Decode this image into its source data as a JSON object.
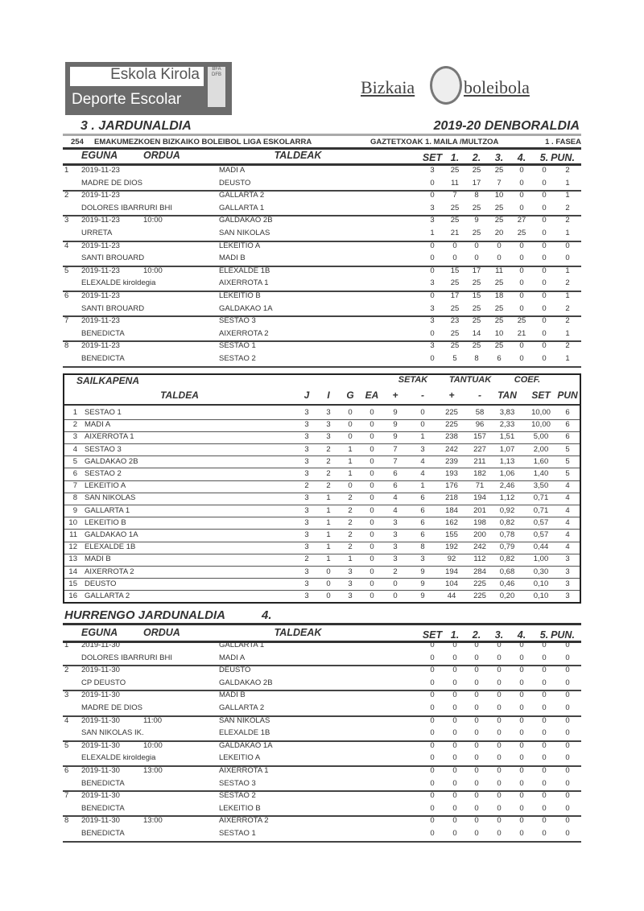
{
  "logos": {
    "left_line1": "Eskola Kirola",
    "left_line2": "Deporte Escolar",
    "left_badge": "BFA DFB",
    "right_left": "Bizkaia",
    "right_right": "boleibola"
  },
  "header": {
    "round_title": "3 . JARDUNALDIA",
    "season": "2019-20 DENBORALDIA",
    "competition_code": "254",
    "competition": "EMAKUMEZKOEN BIZKAIKO BOLEIBOL LIGA ESKOLARRA",
    "category": "GAZTETXOAK  1. MAILA /MULTZOA",
    "phase": "1  . FASEA"
  },
  "match_columns": {
    "date": "EGUNA",
    "time": "ORDUA",
    "teams": "TALDEAK",
    "set": "SET",
    "s1": "1.",
    "s2": "2.",
    "s3": "3.",
    "s4": "4.",
    "s5": "5.",
    "pun": "PUN."
  },
  "results": [
    {
      "n": "1",
      "date": "2019-11-23",
      "time": "",
      "venue": "MADRE DE DIOS",
      "home": "MADI A",
      "away": "DEUSTO",
      "hs": [
        "3",
        "25",
        "25",
        "25",
        "0",
        "0",
        "2"
      ],
      "as": [
        "0",
        "11",
        "17",
        "7",
        "0",
        "0",
        "1"
      ]
    },
    {
      "n": "2",
      "date": "2019-11-23",
      "time": "",
      "venue": "DOLORES IBARRURI BHI",
      "home": "GALLARTA 2",
      "away": "GALLARTA 1",
      "hs": [
        "0",
        "7",
        "8",
        "10",
        "0",
        "0",
        "1"
      ],
      "as": [
        "3",
        "25",
        "25",
        "25",
        "0",
        "0",
        "2"
      ]
    },
    {
      "n": "3",
      "date": "2019-11-23",
      "time": "10:00",
      "venue": "URRETA",
      "home": "GALDAKAO 2B",
      "away": "SAN NIKOLAS",
      "hs": [
        "3",
        "25",
        "9",
        "25",
        "27",
        "0",
        "2"
      ],
      "as": [
        "1",
        "21",
        "25",
        "20",
        "25",
        "0",
        "1"
      ]
    },
    {
      "n": "4",
      "date": "2019-11-23",
      "time": "",
      "venue": "SANTI BROUARD",
      "home": "LEKEITIO A",
      "away": "MADI B",
      "hs": [
        "0",
        "0",
        "0",
        "0",
        "0",
        "0",
        "0"
      ],
      "as": [
        "0",
        "0",
        "0",
        "0",
        "0",
        "0",
        "0"
      ]
    },
    {
      "n": "5",
      "date": "2019-11-23",
      "time": "10:00",
      "venue": "ELEXALDE kiroldegia",
      "home": "ELEXALDE 1B",
      "away": "AIXERROTA 1",
      "hs": [
        "0",
        "15",
        "17",
        "11",
        "0",
        "0",
        "1"
      ],
      "as": [
        "3",
        "25",
        "25",
        "25",
        "0",
        "0",
        "2"
      ]
    },
    {
      "n": "6",
      "date": "2019-11-23",
      "time": "",
      "venue": "SANTI BROUARD",
      "home": "LEKEITIO B",
      "away": "GALDAKAO 1A",
      "hs": [
        "0",
        "17",
        "15",
        "18",
        "0",
        "0",
        "1"
      ],
      "as": [
        "3",
        "25",
        "25",
        "25",
        "0",
        "0",
        "2"
      ]
    },
    {
      "n": "7",
      "date": "2019-11-23",
      "time": "",
      "venue": "BENEDICTA",
      "home": "SESTAO 3",
      "away": "AIXERROTA 2",
      "hs": [
        "3",
        "23",
        "25",
        "25",
        "25",
        "0",
        "2"
      ],
      "as": [
        "0",
        "25",
        "14",
        "10",
        "21",
        "0",
        "1"
      ]
    },
    {
      "n": "8",
      "date": "2019-11-23",
      "time": "",
      "venue": "BENEDICTA",
      "home": "SESTAO 1",
      "away": "SESTAO 2",
      "hs": [
        "3",
        "25",
        "25",
        "25",
        "0",
        "0",
        "2"
      ],
      "as": [
        "0",
        "5",
        "8",
        "6",
        "0",
        "0",
        "1"
      ]
    }
  ],
  "standings": {
    "title": "SAILKAPENA",
    "group_sets": "SETAK",
    "group_points": "TANTUAK",
    "group_coef": "COEF.",
    "columns": [
      "TALDEA",
      "J",
      "I",
      "G",
      "EA",
      "+",
      "-",
      "+",
      "-",
      "TAN",
      "SET",
      "PUN"
    ],
    "rows": [
      [
        "1",
        "SESTAO 1",
        "3",
        "3",
        "0",
        "0",
        "9",
        "0",
        "225",
        "58",
        "3,83",
        "10,00",
        "6"
      ],
      [
        "2",
        "MADI A",
        "3",
        "3",
        "0",
        "0",
        "9",
        "0",
        "225",
        "96",
        "2,33",
        "10,00",
        "6"
      ],
      [
        "3",
        "AIXERROTA 1",
        "3",
        "3",
        "0",
        "0",
        "9",
        "1",
        "238",
        "157",
        "1,51",
        "5,00",
        "6"
      ],
      [
        "4",
        "SESTAO 3",
        "3",
        "2",
        "1",
        "0",
        "7",
        "3",
        "242",
        "227",
        "1,07",
        "2,00",
        "5"
      ],
      [
        "5",
        "GALDAKAO 2B",
        "3",
        "2",
        "1",
        "0",
        "7",
        "4",
        "239",
        "211",
        "1,13",
        "1,60",
        "5"
      ],
      [
        "6",
        "SESTAO 2",
        "3",
        "2",
        "1",
        "0",
        "6",
        "4",
        "193",
        "182",
        "1,06",
        "1,40",
        "5"
      ],
      [
        "7",
        "LEKEITIO A",
        "2",
        "2",
        "0",
        "0",
        "6",
        "1",
        "176",
        "71",
        "2,46",
        "3,50",
        "4"
      ],
      [
        "8",
        "SAN NIKOLAS",
        "3",
        "1",
        "2",
        "0",
        "4",
        "6",
        "218",
        "194",
        "1,12",
        "0,71",
        "4"
      ],
      [
        "9",
        "GALLARTA 1",
        "3",
        "1",
        "2",
        "0",
        "4",
        "6",
        "184",
        "201",
        "0,92",
        "0,71",
        "4"
      ],
      [
        "10",
        "LEKEITIO B",
        "3",
        "1",
        "2",
        "0",
        "3",
        "6",
        "162",
        "198",
        "0,82",
        "0,57",
        "4"
      ],
      [
        "11",
        "GALDAKAO 1A",
        "3",
        "1",
        "2",
        "0",
        "3",
        "6",
        "155",
        "200",
        "0,78",
        "0,57",
        "4"
      ],
      [
        "12",
        "ELEXALDE 1B",
        "3",
        "1",
        "2",
        "0",
        "3",
        "8",
        "192",
        "242",
        "0,79",
        "0,44",
        "4"
      ],
      [
        "13",
        "MADI B",
        "2",
        "1",
        "1",
        "0",
        "3",
        "3",
        "92",
        "112",
        "0,82",
        "1,00",
        "3"
      ],
      [
        "14",
        "AIXERROTA 2",
        "3",
        "0",
        "3",
        "0",
        "2",
        "9",
        "194",
        "284",
        "0,68",
        "0,30",
        "3"
      ],
      [
        "15",
        "DEUSTO",
        "3",
        "0",
        "3",
        "0",
        "0",
        "9",
        "104",
        "225",
        "0,46",
        "0,10",
        "3"
      ],
      [
        "16",
        "GALLARTA 2",
        "3",
        "0",
        "3",
        "0",
        "0",
        "9",
        "44",
        "225",
        "0,20",
        "0,10",
        "3"
      ]
    ]
  },
  "next": {
    "title": "HURRENGO JARDUNALDIA",
    "round": "4.",
    "matches": [
      {
        "n": "1",
        "date": "2019-11-30",
        "time": "",
        "venue": "DOLORES IBARRURI BHI",
        "home": "GALLARTA 1",
        "away": "MADI A",
        "hs": [
          "0",
          "0",
          "0",
          "0",
          "0",
          "0",
          "0"
        ],
        "as": [
          "0",
          "0",
          "0",
          "0",
          "0",
          "0",
          "0"
        ]
      },
      {
        "n": "2",
        "date": "2019-11-30",
        "time": "",
        "venue": "CP DEUSTO",
        "home": "DEUSTO",
        "away": "GALDAKAO 2B",
        "hs": [
          "0",
          "0",
          "0",
          "0",
          "0",
          "0",
          "0"
        ],
        "as": [
          "0",
          "0",
          "0",
          "0",
          "0",
          "0",
          "0"
        ]
      },
      {
        "n": "3",
        "date": "2019-11-30",
        "time": "",
        "venue": "MADRE DE DIOS",
        "home": "MADI B",
        "away": "GALLARTA 2",
        "hs": [
          "0",
          "0",
          "0",
          "0",
          "0",
          "0",
          "0"
        ],
        "as": [
          "0",
          "0",
          "0",
          "0",
          "0",
          "0",
          "0"
        ]
      },
      {
        "n": "4",
        "date": "2019-11-30",
        "time": "11:00",
        "venue": "SAN NIKOLAS IK.",
        "home": "SAN NIKOLAS",
        "away": "ELEXALDE 1B",
        "hs": [
          "0",
          "0",
          "0",
          "0",
          "0",
          "0",
          "0"
        ],
        "as": [
          "0",
          "0",
          "0",
          "0",
          "0",
          "0",
          "0"
        ]
      },
      {
        "n": "5",
        "date": "2019-11-30",
        "time": "10:00",
        "venue": "ELEXALDE kiroldegia",
        "home": "GALDAKAO 1A",
        "away": "LEKEITIO A",
        "hs": [
          "0",
          "0",
          "0",
          "0",
          "0",
          "0",
          "0"
        ],
        "as": [
          "0",
          "0",
          "0",
          "0",
          "0",
          "0",
          "0"
        ]
      },
      {
        "n": "6",
        "date": "2019-11-30",
        "time": "13:00",
        "venue": "BENEDICTA",
        "home": "AIXERROTA 1",
        "away": "SESTAO 3",
        "hs": [
          "0",
          "0",
          "0",
          "0",
          "0",
          "0",
          "0"
        ],
        "as": [
          "0",
          "0",
          "0",
          "0",
          "0",
          "0",
          "0"
        ]
      },
      {
        "n": "7",
        "date": "2019-11-30",
        "time": "",
        "venue": "BENEDICTA",
        "home": "SESTAO 2",
        "away": "LEKEITIO B",
        "hs": [
          "0",
          "0",
          "0",
          "0",
          "0",
          "0",
          "0"
        ],
        "as": [
          "0",
          "0",
          "0",
          "0",
          "0",
          "0",
          "0"
        ]
      },
      {
        "n": "8",
        "date": "2019-11-30",
        "time": "13:00",
        "venue": "BENEDICTA",
        "home": "AIXERROTA 2",
        "away": "SESTAO 1",
        "hs": [
          "0",
          "0",
          "0",
          "0",
          "0",
          "0",
          "0"
        ],
        "as": [
          "0",
          "0",
          "0",
          "0",
          "0",
          "0",
          "0"
        ]
      }
    ]
  }
}
